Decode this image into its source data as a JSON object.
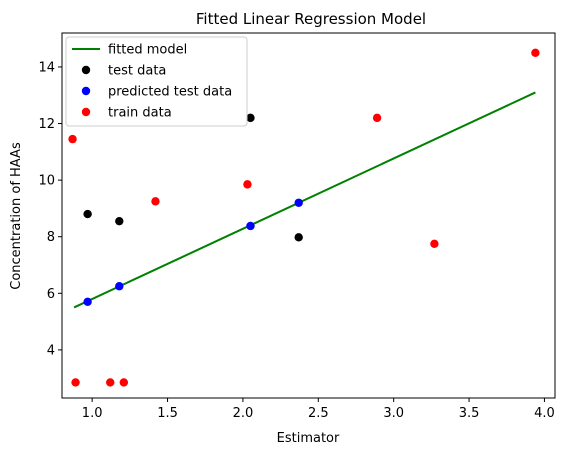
{
  "chart_data": {
    "type": "scatter",
    "title": "Fitted Linear Regression Model",
    "xlabel": "Estimator",
    "ylabel": "Concentration of HAAs",
    "xlim": [
      0.8,
      4.07
    ],
    "ylim": [
      2.3,
      15.2
    ],
    "xticks": [
      1.0,
      1.5,
      2.0,
      2.5,
      3.0,
      3.5,
      4.0
    ],
    "xtick_labels": [
      "1.0",
      "1.5",
      "2.0",
      "2.5",
      "3.0",
      "3.5",
      "4.0"
    ],
    "yticks": [
      4,
      6,
      8,
      10,
      12,
      14
    ],
    "ytick_labels": [
      "4",
      "6",
      "8",
      "10",
      "12",
      "14"
    ],
    "grid": false,
    "legend_position": "top-left",
    "series": [
      {
        "name": "fitted model",
        "kind": "line",
        "color": "#008000",
        "x": [
          0.88,
          3.94
        ],
        "y": [
          5.5,
          13.1
        ]
      },
      {
        "name": "test data",
        "kind": "scatter",
        "color": "#000000",
        "x": [
          0.97,
          1.18,
          2.05,
          2.37
        ],
        "y": [
          8.8,
          8.55,
          12.2,
          7.98
        ]
      },
      {
        "name": "predicted test data",
        "kind": "scatter",
        "color": "#0000ff",
        "x": [
          0.97,
          1.18,
          2.05,
          2.37
        ],
        "y": [
          5.7,
          6.25,
          8.38,
          9.2
        ]
      },
      {
        "name": "train data",
        "kind": "scatter",
        "color": "#ff0000",
        "x": [
          0.87,
          0.89,
          1.12,
          1.21,
          1.42,
          2.03,
          2.89,
          3.27,
          3.94
        ],
        "y": [
          11.45,
          2.85,
          2.85,
          2.85,
          9.25,
          9.85,
          12.2,
          7.75,
          14.5
        ]
      }
    ]
  }
}
